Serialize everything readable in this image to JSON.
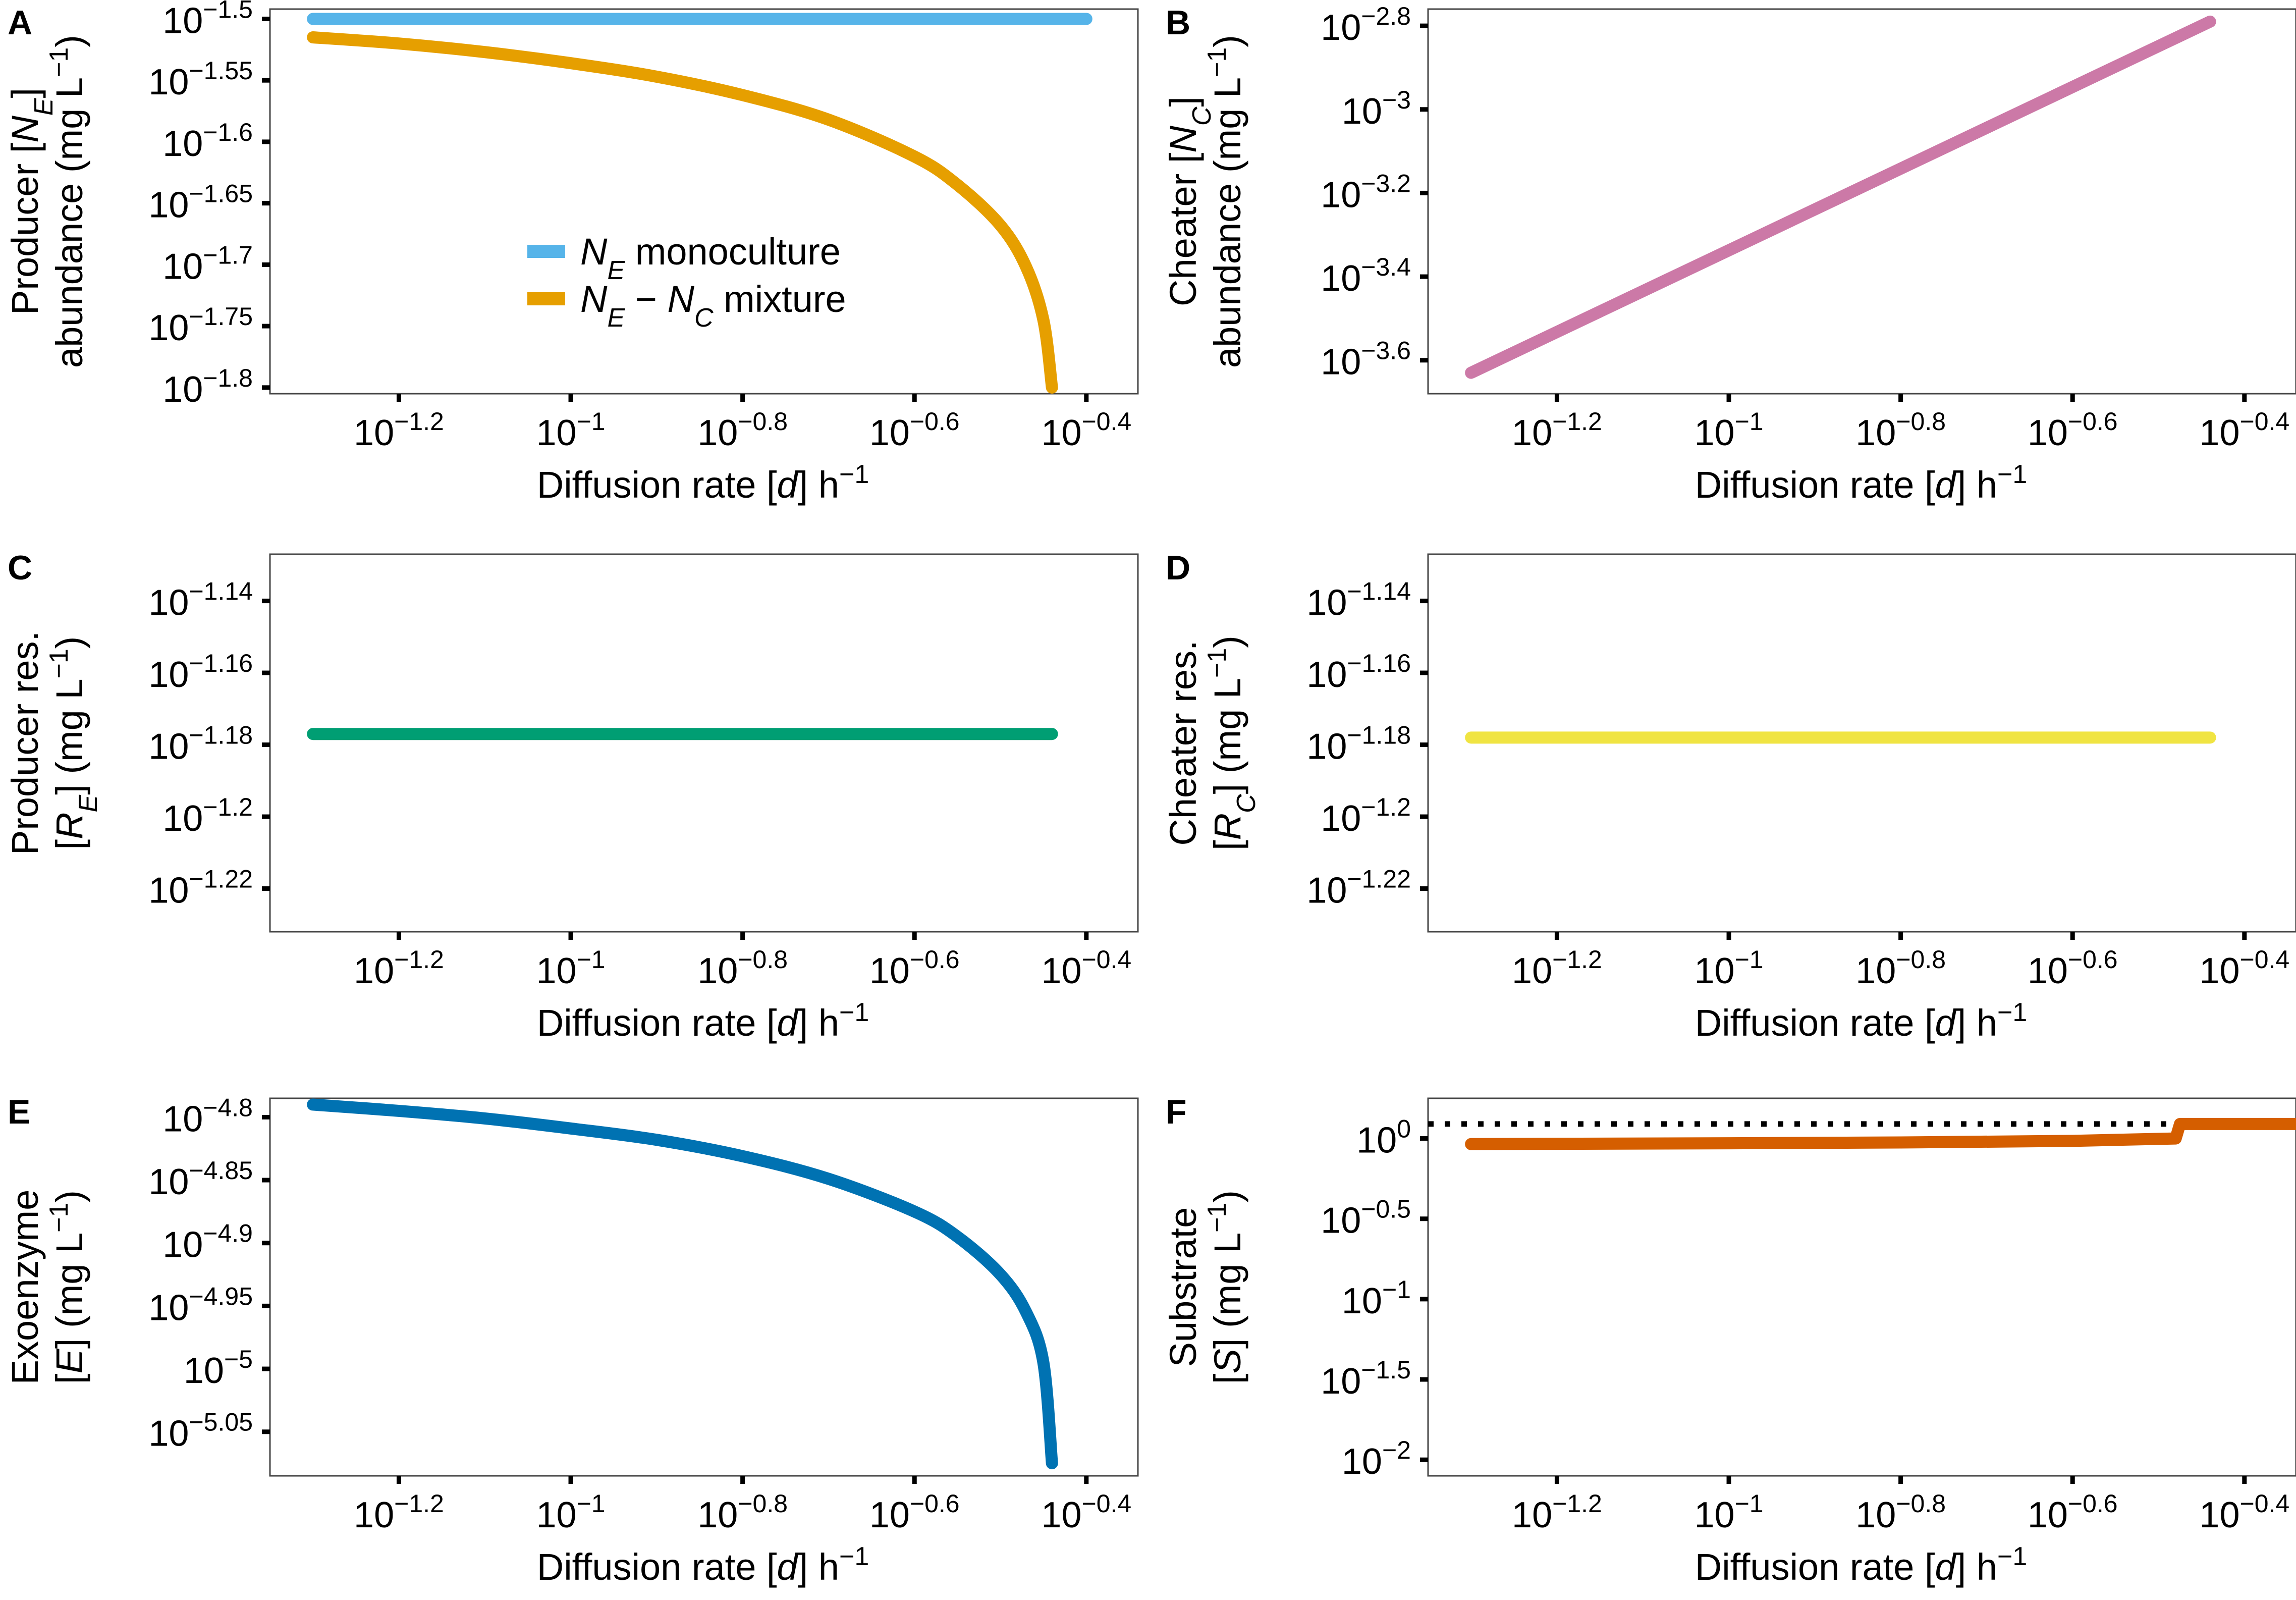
{
  "figure": {
    "panels": [
      {
        "id": "A",
        "letter": "A",
        "ylabel": {
          "line1": [
            {
              "t": "Producer ["
            },
            {
              "t": "N",
              "i": true
            },
            {
              "t": "E",
              "i": true,
              "sub": true
            },
            {
              "t": "]"
            }
          ],
          "line2": [
            {
              "t": "abundance (mg L"
            },
            {
              "t": "−1",
              "sup": true
            },
            {
              "t": ")"
            }
          ]
        },
        "xlabel": [
          {
            "t": "Diffusion rate ["
          },
          {
            "t": "d",
            "i": true
          },
          {
            "t": "] h"
          },
          {
            "t": "−1",
            "sup": true
          }
        ],
        "legend": [
          {
            "label": [
              {
                "t": "N",
                "i": true
              },
              {
                "t": "E",
                "i": true,
                "sub": true
              },
              {
                "t": " monoculture"
              }
            ],
            "color": "#56B4E9"
          },
          {
            "label": [
              {
                "t": "N",
                "i": true
              },
              {
                "t": "E",
                "i": true,
                "sub": true
              },
              {
                "t": " − "
              },
              {
                "t": "N",
                "i": true
              },
              {
                "t": "C",
                "i": true,
                "sub": true
              },
              {
                "t": " mixture"
              }
            ],
            "color": "#E69F00"
          }
        ]
      },
      {
        "id": "B",
        "letter": "B",
        "ylabel": {
          "line1": [
            {
              "t": "Cheater ["
            },
            {
              "t": "N",
              "i": true
            },
            {
              "t": "C",
              "i": true,
              "sub": true
            },
            {
              "t": "]"
            }
          ],
          "line2": [
            {
              "t": "abundance (mg L"
            },
            {
              "t": "−1",
              "sup": true
            },
            {
              "t": ")"
            }
          ]
        },
        "xlabel": [
          {
            "t": "Diffusion rate ["
          },
          {
            "t": "d",
            "i": true
          },
          {
            "t": "] h"
          },
          {
            "t": "−1",
            "sup": true
          }
        ]
      },
      {
        "id": "C",
        "letter": "C",
        "ylabel": {
          "line1": [
            {
              "t": "Producer res."
            }
          ],
          "line2": [
            {
              "t": "["
            },
            {
              "t": "R",
              "i": true
            },
            {
              "t": "E",
              "i": true,
              "sub": true
            },
            {
              "t": "] (mg L"
            },
            {
              "t": "−1",
              "sup": true
            },
            {
              "t": ")"
            }
          ]
        },
        "xlabel": [
          {
            "t": "Diffusion rate ["
          },
          {
            "t": "d",
            "i": true
          },
          {
            "t": "] h"
          },
          {
            "t": "−1",
            "sup": true
          }
        ]
      },
      {
        "id": "D",
        "letter": "D",
        "ylabel": {
          "line1": [
            {
              "t": "Cheater res."
            }
          ],
          "line2": [
            {
              "t": "["
            },
            {
              "t": "R",
              "i": true
            },
            {
              "t": "C",
              "i": true,
              "sub": true
            },
            {
              "t": "] (mg L"
            },
            {
              "t": "−1",
              "sup": true
            },
            {
              "t": ")"
            }
          ]
        },
        "xlabel": [
          {
            "t": "Diffusion rate ["
          },
          {
            "t": "d",
            "i": true
          },
          {
            "t": "] h"
          },
          {
            "t": "−1",
            "sup": true
          }
        ]
      },
      {
        "id": "E",
        "letter": "E",
        "ylabel": {
          "line1": [
            {
              "t": "Exoenzyme"
            }
          ],
          "line2": [
            {
              "t": "["
            },
            {
              "t": "E",
              "i": true
            },
            {
              "t": "] (mg L"
            },
            {
              "t": "−1",
              "sup": true
            },
            {
              "t": ")"
            }
          ]
        },
        "xlabel": [
          {
            "t": "Diffusion rate ["
          },
          {
            "t": "d",
            "i": true
          },
          {
            "t": "] h"
          },
          {
            "t": "−1",
            "sup": true
          }
        ]
      },
      {
        "id": "F",
        "letter": "F",
        "ylabel": {
          "line1": [
            {
              "t": "Substrate"
            }
          ],
          "line2": [
            {
              "t": "["
            },
            {
              "t": "S",
              "i": true
            },
            {
              "t": "] (mg L"
            },
            {
              "t": "−1",
              "sup": true
            },
            {
              "t": ")"
            }
          ]
        },
        "xlabel": [
          {
            "t": "Diffusion rate ["
          },
          {
            "t": "d",
            "i": true
          },
          {
            "t": "] h"
          },
          {
            "t": "−1",
            "sup": true
          }
        ]
      }
    ]
  },
  "chart_data": [
    {
      "panel": "A",
      "type": "line",
      "x_scale": "log10",
      "y_scale": "log10",
      "xlabel": "Diffusion rate [d] h−1",
      "ylabel": "Producer [N_E] abundance (mg L−1)",
      "xlim_log10": [
        -1.35,
        -0.34
      ],
      "ylim_log10": [
        -1.805,
        -1.492
      ],
      "x_ticks": [
        -1.2,
        -1.0,
        -0.8,
        -0.6,
        -0.4
      ],
      "x_tick_labels": [
        "10^-1.2",
        "10^-1",
        "10^-0.8",
        "10^-0.6",
        "10^-0.4"
      ],
      "y_ticks": [
        -1.5,
        -1.55,
        -1.6,
        -1.65,
        -1.7,
        -1.75,
        -1.8
      ],
      "y_tick_labels": [
        "10^-1.5",
        "10^-1.55",
        "10^-1.6",
        "10^-1.65",
        "10^-1.7",
        "10^-1.75",
        "10^-1.8"
      ],
      "legend_position": "center",
      "series": [
        {
          "name": "N_E monoculture",
          "color": "#56B4E9",
          "x_log10": [
            -1.3,
            -0.4
          ],
          "y_log10": [
            -1.5,
            -1.5
          ]
        },
        {
          "name": "N_E − N_C mixture",
          "color": "#E69F00",
          "x_log10": [
            -1.3,
            -1.2,
            -1.1,
            -1.0,
            -0.9,
            -0.8,
            -0.7,
            -0.6,
            -0.55,
            -0.5,
            -0.47,
            -0.45,
            -0.44
          ],
          "y_log10": [
            -1.515,
            -1.52,
            -1.527,
            -1.536,
            -1.547,
            -1.562,
            -1.582,
            -1.612,
            -1.635,
            -1.668,
            -1.702,
            -1.745,
            -1.8
          ]
        }
      ]
    },
    {
      "panel": "B",
      "type": "line",
      "x_scale": "log10",
      "y_scale": "log10",
      "xlabel": "Diffusion rate [d] h−1",
      "ylabel": "Cheater [N_C] abundance (mg L−1)",
      "xlim_log10": [
        -1.35,
        -0.34
      ],
      "ylim_log10": [
        -3.68,
        -2.76
      ],
      "x_ticks": [
        -1.2,
        -1.0,
        -0.8,
        -0.6,
        -0.4
      ],
      "x_tick_labels": [
        "10^-1.2",
        "10^-1",
        "10^-0.8",
        "10^-0.6",
        "10^-0.4"
      ],
      "y_ticks": [
        -2.8,
        -3.0,
        -3.2,
        -3.4,
        -3.6
      ],
      "y_tick_labels": [
        "10^-2.8",
        "10^-3",
        "10^-3.2",
        "10^-3.4",
        "10^-3.6"
      ],
      "series": [
        {
          "name": "N_C",
          "color": "#CC79A7",
          "x_log10": [
            -1.3,
            -0.44
          ],
          "y_log10": [
            -3.63,
            -2.79
          ]
        }
      ]
    },
    {
      "panel": "C",
      "type": "line",
      "x_scale": "log10",
      "y_scale": "log10",
      "xlabel": "Diffusion rate [d] h−1",
      "ylabel": "Producer res. [R_E] (mg L−1)",
      "xlim_log10": [
        -1.35,
        -0.34
      ],
      "ylim_log10": [
        -1.232,
        -1.127
      ],
      "x_ticks": [
        -1.2,
        -1.0,
        -0.8,
        -0.6,
        -0.4
      ],
      "x_tick_labels": [
        "10^-1.2",
        "10^-1",
        "10^-0.8",
        "10^-0.6",
        "10^-0.4"
      ],
      "y_ticks": [
        -1.14,
        -1.16,
        -1.18,
        -1.2,
        -1.22
      ],
      "y_tick_labels": [
        "10^-1.14",
        "10^-1.16",
        "10^-1.18",
        "10^-1.2",
        "10^-1.22"
      ],
      "series": [
        {
          "name": "R_E",
          "color": "#009E73",
          "x_log10": [
            -1.3,
            -0.44
          ],
          "y_log10": [
            -1.177,
            -1.177
          ]
        }
      ]
    },
    {
      "panel": "D",
      "type": "line",
      "x_scale": "log10",
      "y_scale": "log10",
      "xlabel": "Diffusion rate [d] h−1",
      "ylabel": "Cheater res. [R_C] (mg L−1)",
      "xlim_log10": [
        -1.35,
        -0.34
      ],
      "ylim_log10": [
        -1.232,
        -1.127
      ],
      "x_ticks": [
        -1.2,
        -1.0,
        -0.8,
        -0.6,
        -0.4
      ],
      "x_tick_labels": [
        "10^-1.2",
        "10^-1",
        "10^-0.8",
        "10^-0.6",
        "10^-0.4"
      ],
      "y_ticks": [
        -1.14,
        -1.16,
        -1.18,
        -1.2,
        -1.22
      ],
      "y_tick_labels": [
        "10^-1.14",
        "10^-1.16",
        "10^-1.18",
        "10^-1.2",
        "10^-1.22"
      ],
      "series": [
        {
          "name": "R_C",
          "color": "#F0E442",
          "x_log10": [
            -1.3,
            -0.44
          ],
          "y_log10": [
            -1.178,
            -1.178
          ]
        }
      ]
    },
    {
      "panel": "E",
      "type": "line",
      "x_scale": "log10",
      "y_scale": "log10",
      "xlabel": "Diffusion rate [d] h−1",
      "ylabel": "Exoenzyme [E] (mg L−1)",
      "xlim_log10": [
        -1.35,
        -0.34
      ],
      "ylim_log10": [
        -5.085,
        -4.785
      ],
      "x_ticks": [
        -1.2,
        -1.0,
        -0.8,
        -0.6,
        -0.4
      ],
      "x_tick_labels": [
        "10^-1.2",
        "10^-1",
        "10^-0.8",
        "10^-0.6",
        "10^-0.4"
      ],
      "y_ticks": [
        -4.8,
        -4.85,
        -4.9,
        -4.95,
        -5.0,
        -5.05
      ],
      "y_tick_labels": [
        "10^-4.8",
        "10^-4.85",
        "10^-4.9",
        "10^-4.95",
        "10^-5",
        "10^-5.05"
      ],
      "series": [
        {
          "name": "E",
          "color": "#0072B2",
          "x_log10": [
            -1.3,
            -1.2,
            -1.1,
            -1.0,
            -0.9,
            -0.8,
            -0.7,
            -0.6,
            -0.55,
            -0.5,
            -0.47,
            -0.45,
            -0.44
          ],
          "y_log10": [
            -4.79,
            -4.795,
            -4.801,
            -4.809,
            -4.818,
            -4.831,
            -4.849,
            -4.875,
            -4.895,
            -4.925,
            -4.955,
            -4.995,
            -5.075
          ]
        }
      ]
    },
    {
      "panel": "F",
      "type": "line",
      "x_scale": "log10",
      "y_scale": "log10",
      "xlabel": "Diffusion rate [d] h−1",
      "ylabel": "Substrate [S] (mg L−1)",
      "xlim_log10": [
        -1.35,
        -0.34
      ],
      "ylim_log10": [
        -2.1,
        0.25
      ],
      "x_ticks": [
        -1.2,
        -1.0,
        -0.8,
        -0.6,
        -0.4
      ],
      "x_tick_labels": [
        "10^-1.2",
        "10^-1",
        "10^-0.8",
        "10^-0.6",
        "10^-0.4"
      ],
      "y_ticks": [
        0,
        -0.5,
        -1.0,
        -1.5,
        -2.0
      ],
      "y_tick_labels": [
        "10^0",
        "10^-0.5",
        "10^-1",
        "10^-1.5",
        "10^-2"
      ],
      "reference_line": {
        "style": "dotted",
        "color": "#000000",
        "y_log10": 0.09
      },
      "series": [
        {
          "name": "S",
          "color": "#D55E00",
          "x_log10": [
            -1.3,
            -1.0,
            -0.8,
            -0.6,
            -0.48,
            -0.475,
            -0.47,
            -0.34
          ],
          "y_log10": [
            -0.035,
            -0.03,
            -0.025,
            -0.015,
            0.0,
            0.09,
            0.09,
            0.09
          ]
        }
      ]
    }
  ]
}
